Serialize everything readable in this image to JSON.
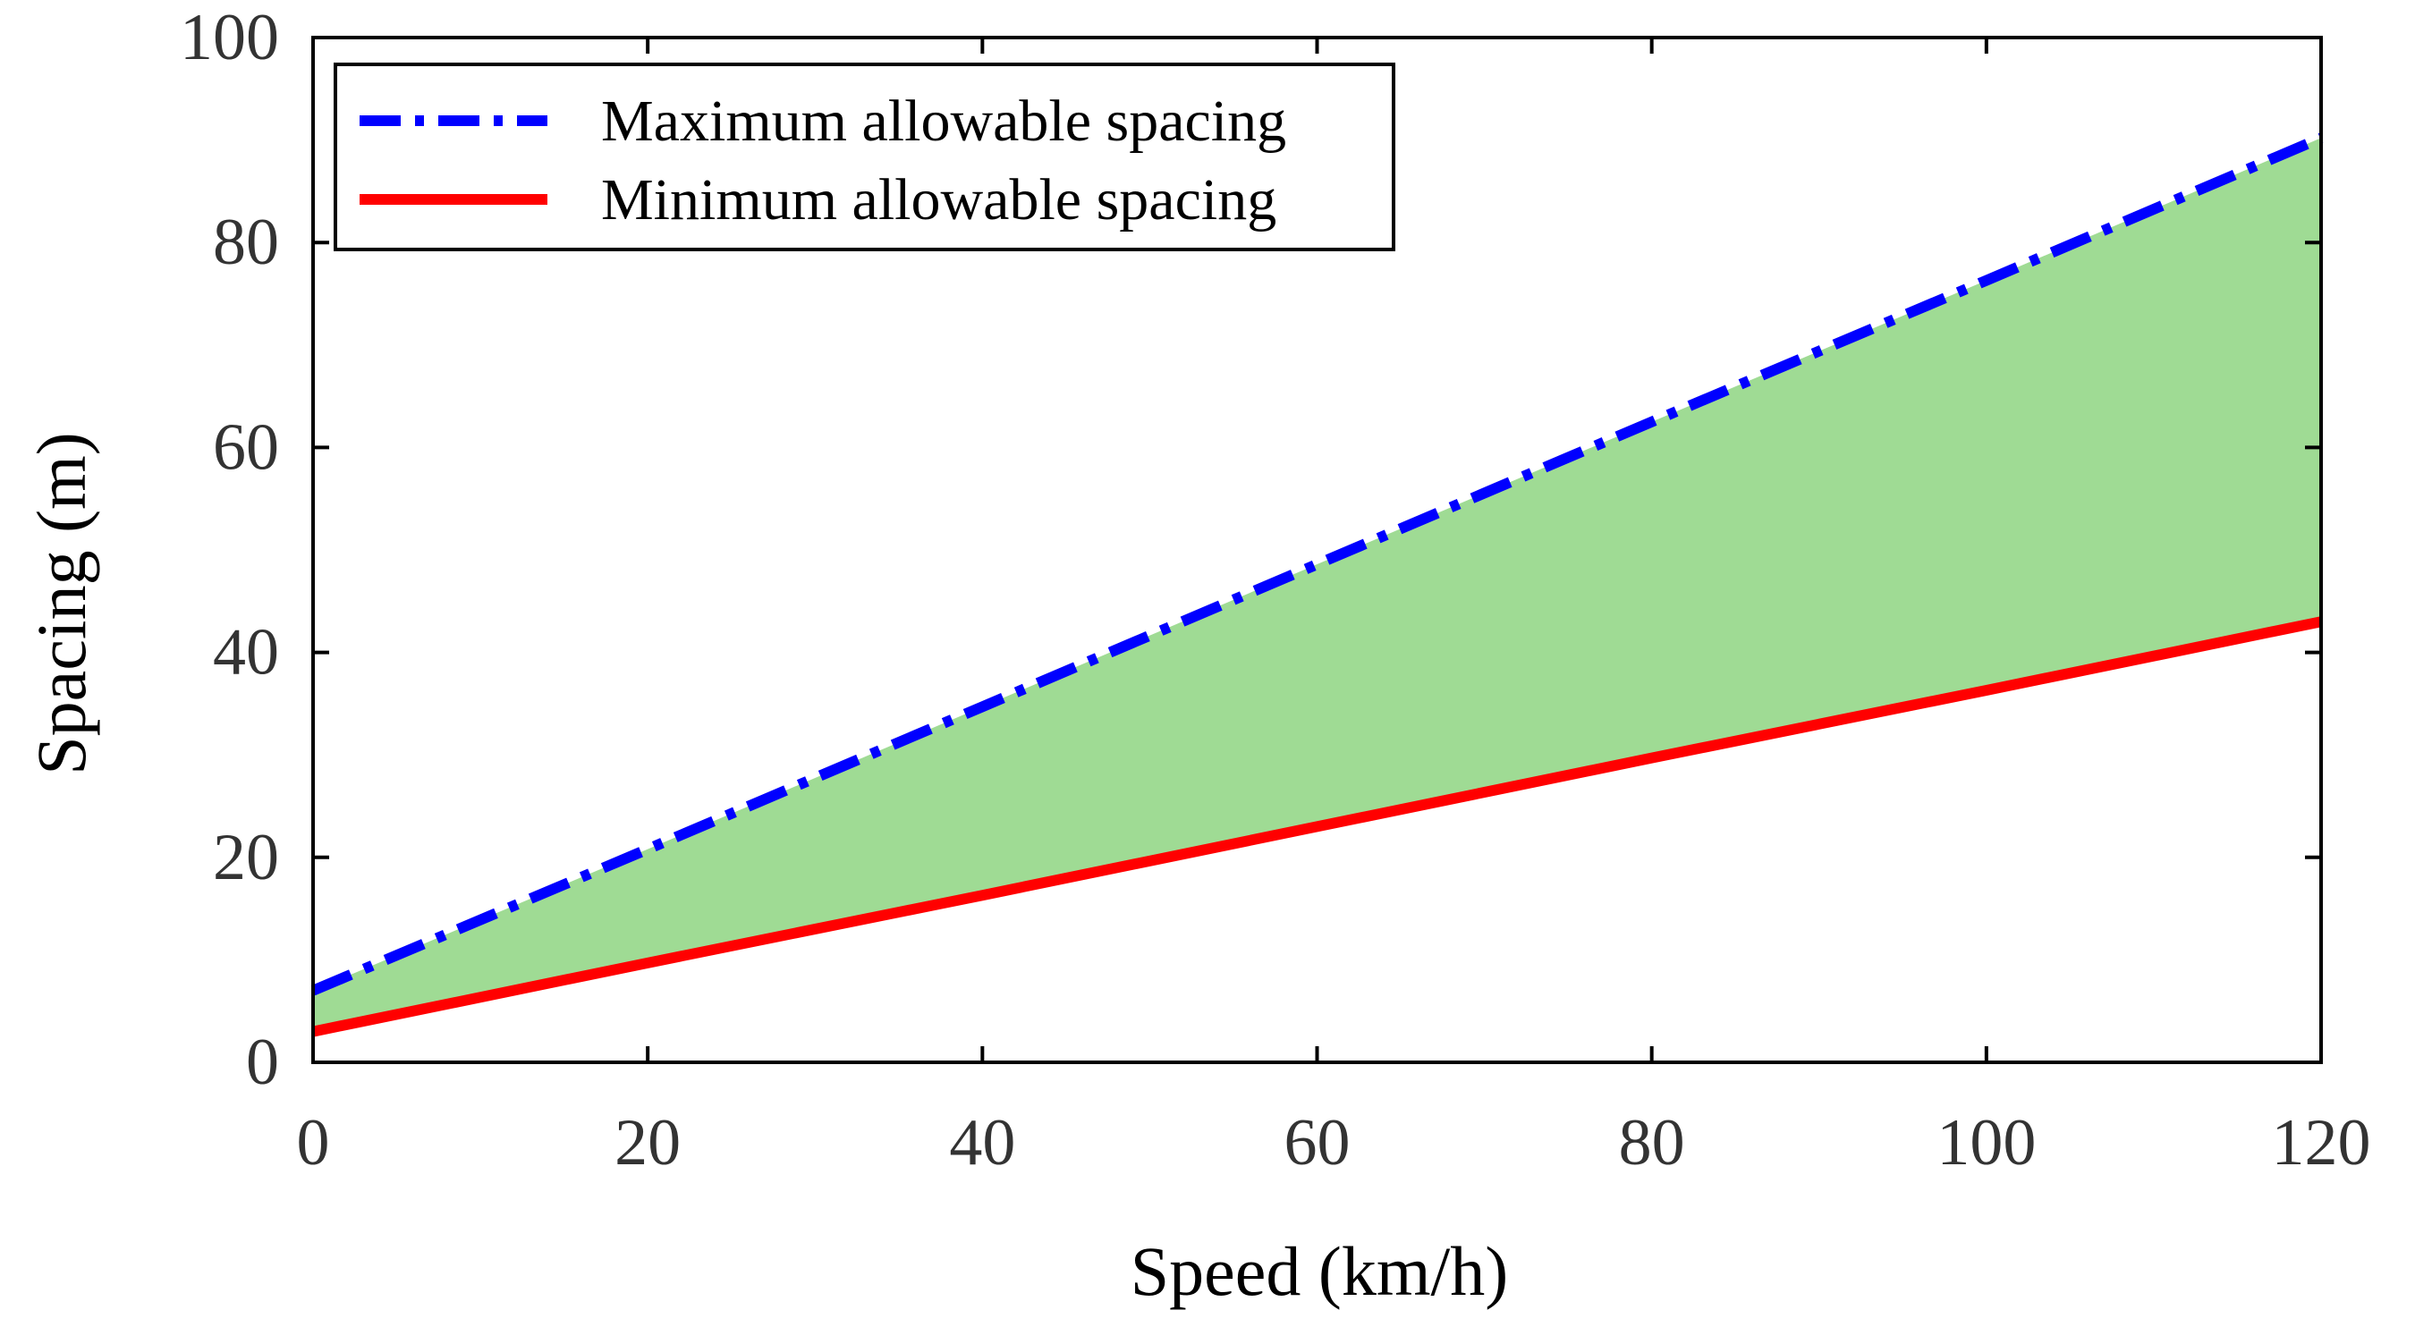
{
  "chart_data": {
    "type": "line",
    "title": "",
    "xlabel": "Speed (km/h)",
    "ylabel": "Spacing (m)",
    "xlim": [
      0,
      120
    ],
    "ylim": [
      0,
      100
    ],
    "xticks": [
      "0",
      "20",
      "40",
      "60",
      "80",
      "100",
      "120"
    ],
    "yticks": [
      "0",
      "20",
      "40",
      "60",
      "80",
      "100"
    ],
    "legend_position": "top-left",
    "grid": false,
    "x": [
      0,
      20,
      40,
      60,
      80,
      100,
      120
    ],
    "series": [
      {
        "name": "Maximum allowable spacing",
        "style": "dash-dot",
        "color": "#0000ff",
        "values": [
          7,
          20.8,
          34.7,
          48.6,
          62.5,
          76.3,
          90.2
        ]
      },
      {
        "name": "Minimum allowable spacing",
        "style": "solid",
        "color": "#ff0000",
        "values": [
          3,
          9.7,
          16.3,
          23,
          29.7,
          36.3,
          43
        ]
      }
    ],
    "fill_between": {
      "color": "#9fdb94",
      "lower": "Minimum allowable spacing",
      "upper": "Maximum allowable spacing"
    }
  }
}
